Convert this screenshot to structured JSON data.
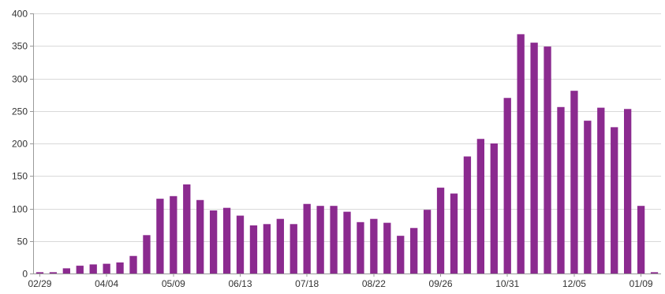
{
  "chart_data": {
    "type": "bar",
    "title": "",
    "xlabel": "",
    "ylabel": "",
    "ylim": [
      0,
      400
    ],
    "yticks": [
      0,
      50,
      100,
      150,
      200,
      250,
      300,
      350,
      400
    ],
    "grid": true,
    "legend": "none",
    "bar_color": "#8b2a8f",
    "x_tick_labels": [
      "02/29",
      "04/04",
      "05/09",
      "06/13",
      "07/18",
      "08/22",
      "09/26",
      "10/31",
      "12/05",
      "01/09"
    ],
    "x_tick_label_every": 5,
    "series": [
      {
        "values": [
          2,
          2,
          8,
          12,
          14,
          15,
          17,
          27,
          59,
          115,
          119,
          137,
          113,
          97,
          101,
          89,
          74,
          76,
          84,
          76,
          107,
          104,
          104,
          95,
          79,
          84,
          78,
          58,
          70,
          98,
          132,
          123,
          180,
          207,
          200,
          270,
          368,
          355,
          349,
          256,
          281,
          235,
          255,
          225,
          253,
          104,
          2
        ]
      }
    ]
  }
}
